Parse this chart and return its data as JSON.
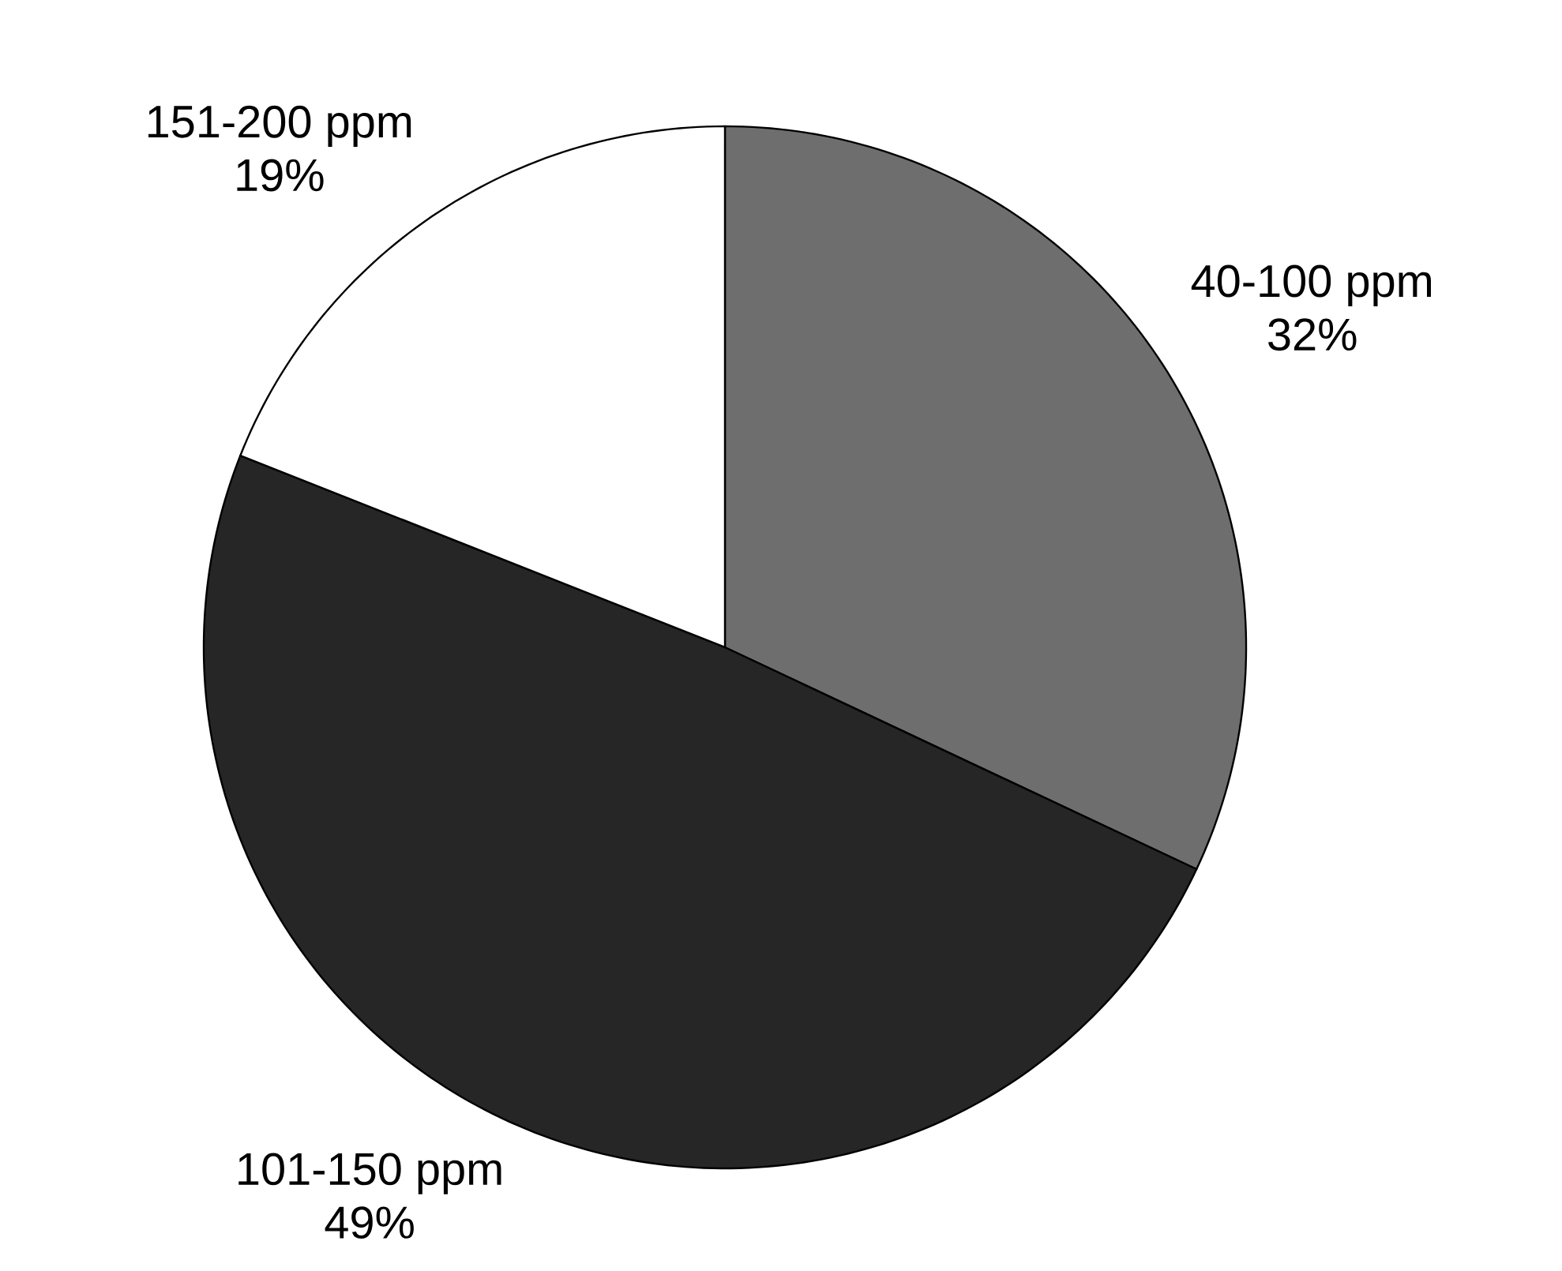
{
  "chart_data": {
    "type": "pie",
    "categories": [
      "40-100 ppm",
      "101-150 ppm",
      "151-200 ppm"
    ],
    "values": [
      32,
      49,
      19
    ],
    "value_labels": [
      "32%",
      "49%",
      "19%"
    ],
    "colors": [
      "#6e6e6e",
      "#262626",
      "#ffffff"
    ]
  }
}
